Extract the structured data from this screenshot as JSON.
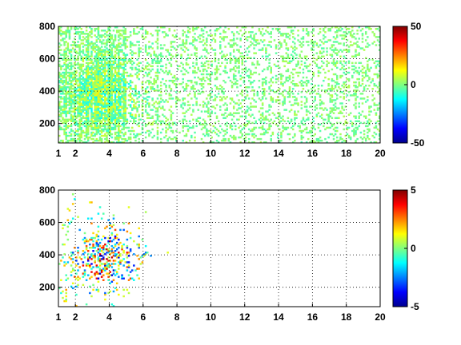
{
  "chart_data": [
    {
      "type": "heatmap",
      "colormap": "jet",
      "xlim": [
        1,
        20
      ],
      "ylim": [
        80,
        800
      ],
      "xticks": [
        "1",
        "2",
        "4",
        "6",
        "8",
        "10",
        "12",
        "14",
        "16",
        "18",
        "20"
      ],
      "yticks": [
        "200",
        "400",
        "600",
        "800"
      ],
      "clim": [
        -50,
        50
      ],
      "colorbar_ticks": [
        "-50",
        "0",
        "50"
      ],
      "grid": true,
      "density": 0.55,
      "value_spread": 10,
      "hotspot": {
        "x": 3.6,
        "y": 380
      }
    },
    {
      "type": "heatmap",
      "colormap": "jet",
      "xlim": [
        1,
        20
      ],
      "ylim": [
        80,
        800
      ],
      "xticks": [
        "1",
        "2",
        "4",
        "6",
        "8",
        "10",
        "12",
        "14",
        "16",
        "18",
        "20"
      ],
      "yticks": [
        "200",
        "400",
        "600",
        "800"
      ],
      "clim": [
        -5,
        5
      ],
      "colorbar_ticks": [
        "-5",
        "0",
        "5"
      ],
      "grid": true,
      "density": 0.08,
      "value_spread": 3,
      "hotspot": {
        "x": 3.8,
        "y": 370
      }
    }
  ]
}
